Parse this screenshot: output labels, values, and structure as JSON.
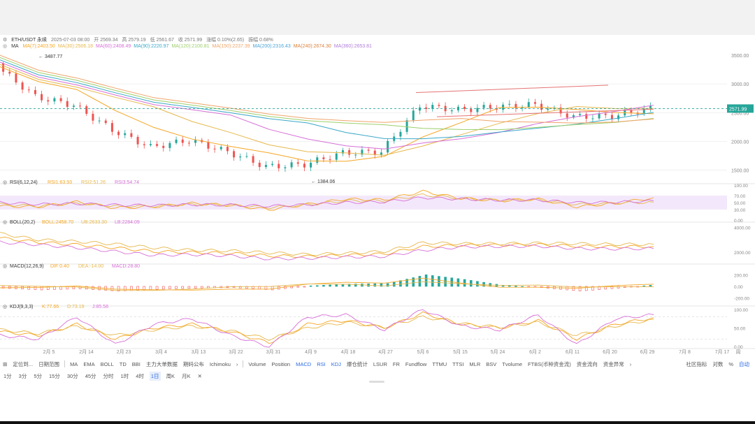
{
  "symbol_line": {
    "symbol": "ETH/USDT 永续",
    "date": "2025-07-03 08:00",
    "open": "开 2569.34",
    "high": "高 2579.19",
    "low": "低 2561.67",
    "close": "收 2571.99",
    "change": "涨幅 0.10%(2.65)",
    "amplitude": "振幅 0.68%"
  },
  "ma_line": {
    "label": "MA",
    "items": [
      {
        "text": "MA(7):2403.50",
        "color": "#f5a623"
      },
      {
        "text": "MA(30):2506.18",
        "color": "#e6b84c"
      },
      {
        "text": "MA(60):2408.49",
        "color": "#d66fd6"
      },
      {
        "text": "MA(90):2220.97",
        "color": "#3aa8c8"
      },
      {
        "text": "MA(120):2100.81",
        "color": "#9ccf6a"
      },
      {
        "text": "MA(150):2237.39",
        "color": "#f0a46a"
      },
      {
        "text": "MA(200):2316.43",
        "color": "#4aa3d8"
      },
      {
        "text": "MA(240):2674.30",
        "color": "#d9823b"
      },
      {
        "text": "MA(360):2653.81",
        "color": "#b07cd8"
      }
    ]
  },
  "price_axis": [
    "3000.00",
    "2500.00",
    "2000.00",
    "1500.00"
  ],
  "price_axis_top": "3500.00",
  "last_price": "2571.99",
  "high_mark": "3487.77",
  "low_mark": "1384.06",
  "rsi_line": {
    "label": "RSI(6,12,24)",
    "items": [
      {
        "text": "RSI1:63.93",
        "color": "#f5a623"
      },
      {
        "text": "RSI2:51.26",
        "color": "#e6b84c"
      },
      {
        "text": "RSI3:54.74",
        "color": "#d66fd6"
      }
    ],
    "axis": [
      "100.00",
      "70.00",
      "50.00",
      "30.00",
      "0.00"
    ]
  },
  "boll_line": {
    "label": "BOLL(20,2)",
    "items": [
      {
        "text": "BOLL:2458.70",
        "color": "#f5a623"
      },
      {
        "text": "UB:2633.30",
        "color": "#e6b84c"
      },
      {
        "text": "LB:2284.09",
        "color": "#d66fd6"
      }
    ],
    "axis": [
      "4000.00",
      "2000.00"
    ]
  },
  "macd_line": {
    "label": "MACD(12,26,9)",
    "items": [
      {
        "text": "DIF:0.40",
        "color": "#f5a623"
      },
      {
        "text": "DEA:-14.00",
        "color": "#e6b84c"
      },
      {
        "text": "MACD:28.80",
        "color": "#d66fd6"
      }
    ],
    "axis": [
      "200.00",
      "0.00",
      "-200.00"
    ]
  },
  "kdj_line": {
    "label": "KDJ(9,3,3)",
    "items": [
      {
        "text": "K:77.66",
        "color": "#f5a623"
      },
      {
        "text": "D:73.19",
        "color": "#e6b84c"
      },
      {
        "text": "J:85.58",
        "color": "#d66fd6"
      }
    ],
    "axis": [
      "100.00",
      "50.00",
      "0.00"
    ]
  },
  "x_axis_labels": [
    "2月 5",
    "2月 14",
    "2月 23",
    "3月 4",
    "3月 13",
    "3月 22",
    "3月 31",
    "4月 9",
    "4月 18",
    "4月 27",
    "5月 6",
    "5月 15",
    "5月 24",
    "6月 2",
    "6月 11",
    "6月 20",
    "6月 29",
    "7月 8",
    "7月 17"
  ],
  "x_axis_tail": "周",
  "toolbar": {
    "left": [
      "定位到...",
      "日期范围"
    ],
    "main_indicators": [
      "MA",
      "EMA",
      "BOLL",
      "TD",
      "BBI",
      "主力大单数据",
      "期码公布",
      "Ichimoku",
      "›"
    ],
    "sub_indicators": [
      "Volume",
      "Position",
      "MACD",
      "RSI",
      "KDJ",
      "爆仓统计",
      "LSUR",
      "FR",
      "Fundflow",
      "TTMU",
      "TTSI",
      "MLR",
      "BSV",
      "Tvolume",
      "FTBS(币种资金流)",
      "资金流向",
      "资金异常",
      "›"
    ],
    "right": [
      "社区指标",
      "对数",
      "%",
      "自动"
    ]
  },
  "intervals": [
    "1分",
    "3分",
    "5分",
    "15分",
    "30分",
    "45分",
    "分时",
    "1时",
    "4时",
    "1日",
    "周K",
    "月K",
    "✕"
  ],
  "active_interval": "1日",
  "colors": {
    "up": "#26a69a",
    "down": "#ef5350",
    "accent": "#2c6be0"
  },
  "chart_data": [
    {
      "type": "candlestick",
      "title": "ETH/USDT 永续 1日",
      "ylim": [
        1300,
        3550
      ],
      "x": [
        "2月 5",
        "2月 14",
        "2月 23",
        "3月 4",
        "3月 13",
        "3月 22",
        "3月 31",
        "4月 9",
        "4月 18",
        "4月 27",
        "5月 6",
        "5月 15",
        "5月 24",
        "6月 2",
        "6月 11",
        "6月 20",
        "6月 29",
        "7月 3"
      ],
      "close": [
        3300,
        2780,
        2630,
        2200,
        1900,
        2020,
        1820,
        1560,
        1600,
        1800,
        1820,
        2620,
        2550,
        2600,
        2640,
        2430,
        2440,
        2571.99
      ],
      "annotations": [
        {
          "label": "3487.77",
          "type": "high"
        },
        {
          "label": "1384.06",
          "type": "low"
        }
      ]
    },
    {
      "type": "line",
      "title": "RSI(6,12,24)",
      "ylim": [
        0,
        100
      ],
      "series": [
        {
          "name": "RSI1",
          "values": [
            40,
            38,
            52,
            35,
            38,
            48,
            42,
            30,
            45,
            60,
            58,
            82,
            62,
            55,
            60,
            38,
            48,
            63.93
          ]
        },
        {
          "name": "RSI2",
          "values": [
            45,
            40,
            48,
            40,
            40,
            45,
            43,
            36,
            44,
            55,
            55,
            72,
            62,
            57,
            58,
            45,
            48,
            51.26
          ]
        },
        {
          "name": "RSI3",
          "values": [
            50,
            45,
            47,
            43,
            42,
            44,
            43,
            40,
            44,
            50,
            52,
            64,
            60,
            57,
            57,
            50,
            51,
            54.74
          ]
        }
      ]
    },
    {
      "type": "line",
      "title": "BOLL(20,2)",
      "ylim": [
        1200,
        4200
      ],
      "series": [
        {
          "name": "BOLL",
          "values": [
            3150,
            2800,
            2600,
            2350,
            2050,
            1980,
            1900,
            1700,
            1650,
            1750,
            1850,
            2450,
            2550,
            2570,
            2600,
            2480,
            2440,
            2458.7
          ]
        },
        {
          "name": "UB",
          "values": [
            3500,
            3000,
            2850,
            2650,
            2350,
            2150,
            2100,
            1950,
            1800,
            1900,
            2050,
            2750,
            2680,
            2680,
            2720,
            2680,
            2620,
            2633.3
          ]
        },
        {
          "name": "LB",
          "values": [
            2800,
            2600,
            2350,
            2050,
            1750,
            1800,
            1700,
            1450,
            1500,
            1600,
            1650,
            2150,
            2420,
            2460,
            2480,
            2280,
            2260,
            2284.09
          ]
        }
      ]
    },
    {
      "type": "bar",
      "title": "MACD(12,26,9)",
      "ylim": [
        -300,
        300
      ],
      "values": [
        -30,
        -60,
        -40,
        -80,
        -50,
        -30,
        -20,
        -60,
        10,
        40,
        50,
        200,
        120,
        20,
        -20,
        -80,
        -30,
        28.8
      ]
    },
    {
      "type": "line",
      "title": "KDJ(9,3,3)",
      "ylim": [
        0,
        100
      ],
      "series": [
        {
          "name": "K",
          "values": [
            40,
            30,
            60,
            20,
            50,
            60,
            40,
            10,
            60,
            70,
            50,
            90,
            60,
            50,
            70,
            20,
            60,
            77.66
          ]
        },
        {
          "name": "D",
          "values": [
            45,
            35,
            55,
            30,
            45,
            55,
            42,
            20,
            50,
            65,
            52,
            80,
            62,
            52,
            65,
            30,
            55,
            73.19
          ]
        },
        {
          "name": "J",
          "values": [
            30,
            20,
            80,
            5,
            60,
            75,
            30,
            0,
            80,
            85,
            45,
            100,
            55,
            45,
            85,
            5,
            75,
            85.58
          ]
        }
      ]
    }
  ]
}
